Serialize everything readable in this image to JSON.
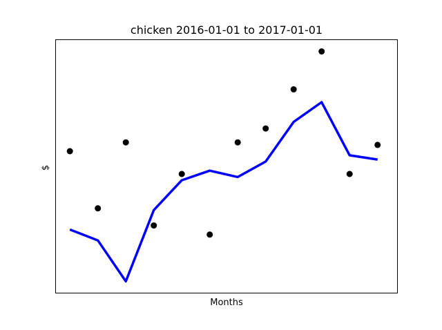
{
  "chart_data": {
    "type": "line",
    "title": "chicken 2016-01-01 to 2017-01-01",
    "xlabel": "Months",
    "ylabel": "$",
    "x_ticks_shown": false,
    "y_ticks_shown": false,
    "grid": false,
    "xlim": [
      0.5,
      12.7
    ],
    "ylim": [
      0,
      100
    ],
    "series": [
      {
        "kind": "scatter",
        "color": "#000000",
        "x": [
          1,
          2,
          3,
          4,
          5,
          6,
          7,
          8,
          9,
          10,
          11,
          12
        ],
        "y": [
          56.0,
          33.4,
          59.5,
          26.6,
          47.0,
          23.0,
          59.5,
          65.0,
          80.5,
          95.5,
          47.0,
          58.5
        ]
      },
      {
        "kind": "line",
        "color": "#0000ff",
        "x": [
          1,
          2,
          3,
          4,
          5,
          6,
          7,
          8,
          9,
          10,
          11,
          12
        ],
        "y": [
          25.0,
          20.7,
          4.5,
          32.7,
          44.5,
          48.3,
          45.8,
          51.9,
          67.6,
          75.4,
          54.4,
          52.7
        ]
      }
    ]
  }
}
